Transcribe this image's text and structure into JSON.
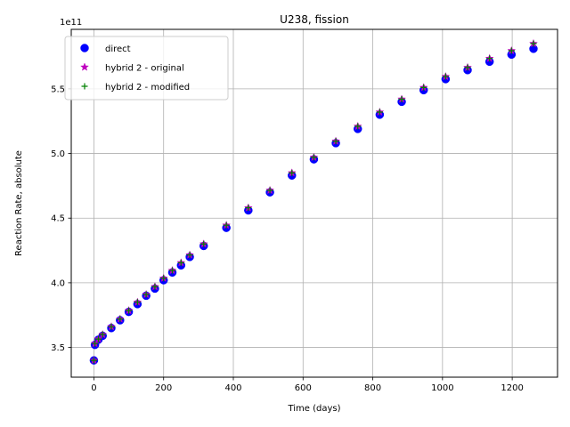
{
  "chart_data": {
    "type": "scatter",
    "title": "U238, fission",
    "xlabel": "Time (days)",
    "ylabel": "Reaction Rate, absolute",
    "y_offset_label": "1e11",
    "y_multiplier": 100000000000.0,
    "xlim": [
      -65,
      1330
    ],
    "ylim": [
      3.27,
      5.96
    ],
    "xticks": [
      0,
      200,
      400,
      600,
      800,
      1000,
      1200
    ],
    "xtick_labels": [
      "0",
      "200",
      "400",
      "600",
      "800",
      "1000",
      "1200"
    ],
    "yticks": [
      3.5,
      4.0,
      4.5,
      5.0,
      5.5
    ],
    "ytick_labels": [
      "3.5",
      "4.0",
      "4.5",
      "5.0",
      "5.5"
    ],
    "grid": true,
    "legend_position": "upper-left",
    "x": [
      0,
      3,
      13,
      25,
      50,
      75,
      100,
      125,
      150,
      175,
      200,
      225,
      250,
      275,
      315,
      380,
      443,
      505,
      568,
      631,
      694,
      757,
      820,
      883,
      946,
      1009,
      1072,
      1135,
      1198,
      1261
    ],
    "series": [
      {
        "name": "direct",
        "marker": "circle",
        "color": "#0000ff",
        "values": [
          3.4,
          3.52,
          3.56,
          3.59,
          3.65,
          3.71,
          3.775,
          3.835,
          3.9,
          3.955,
          4.02,
          4.08,
          4.135,
          4.2,
          4.285,
          4.425,
          4.56,
          4.7,
          4.83,
          4.955,
          5.08,
          5.19,
          5.3,
          5.4,
          5.49,
          5.575,
          5.645,
          5.71,
          5.765,
          5.81
        ]
      },
      {
        "name": "hybrid 2 - original",
        "marker": "star",
        "color": "#bf00bf",
        "values": [
          3.4,
          3.53,
          3.565,
          3.6,
          3.66,
          3.72,
          3.785,
          3.85,
          3.91,
          3.97,
          4.035,
          4.095,
          4.155,
          4.215,
          4.3,
          4.445,
          4.58,
          4.715,
          4.85,
          4.97,
          5.095,
          5.21,
          5.32,
          5.42,
          5.51,
          5.595,
          5.665,
          5.735,
          5.795,
          5.85
        ]
      },
      {
        "name": "hybrid 2 - modified",
        "marker": "plus",
        "color": "#008000",
        "values": [
          3.4,
          3.53,
          3.565,
          3.6,
          3.66,
          3.72,
          3.785,
          3.85,
          3.91,
          3.97,
          4.035,
          4.095,
          4.155,
          4.215,
          4.3,
          4.445,
          4.58,
          4.715,
          4.85,
          4.97,
          5.095,
          5.21,
          5.32,
          5.42,
          5.51,
          5.595,
          5.665,
          5.735,
          5.795,
          5.85
        ]
      }
    ]
  }
}
